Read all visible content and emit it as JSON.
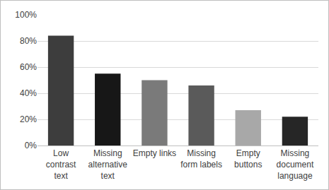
{
  "chart_data": {
    "type": "bar",
    "categories": [
      "Low contrast text",
      "Missing alternative text",
      "Empty links",
      "Missing form labels",
      "Empty buttons",
      "Missing document language"
    ],
    "values": [
      84,
      55,
      50,
      46,
      27,
      22
    ],
    "colors": [
      "#3d3d3d",
      "#171717",
      "#7a7a7a",
      "#5a5a5a",
      "#a8a8a8",
      "#262626"
    ],
    "ylim": [
      0,
      100
    ],
    "yticks": [
      {
        "value": 0,
        "label": "0%"
      },
      {
        "value": 20,
        "label": "20%"
      },
      {
        "value": 40,
        "label": "40%"
      },
      {
        "value": 60,
        "label": "60%"
      },
      {
        "value": 80,
        "label": "80%"
      },
      {
        "value": 100,
        "label": "100%"
      }
    ],
    "grid": true
  }
}
